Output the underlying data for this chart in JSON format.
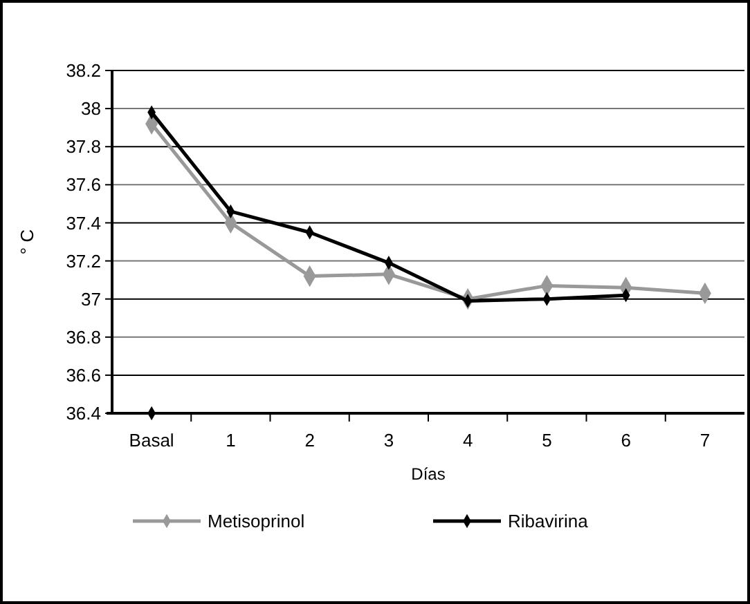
{
  "chart_data": {
    "type": "line",
    "xlabel": "Días",
    "ylabel": "° C",
    "categories": [
      "Basal",
      "1",
      "2",
      "3",
      "4",
      "5",
      "6",
      "7"
    ],
    "series": [
      {
        "name": "Metisoprinol",
        "color": "#999999",
        "values": [
          37.92,
          37.4,
          37.12,
          37.13,
          37.0,
          37.07,
          37.06,
          37.03
        ]
      },
      {
        "name": "Ribavirina",
        "color": "#000000",
        "values": [
          37.98,
          37.46,
          37.35,
          37.19,
          36.99,
          37.0,
          37.02,
          null
        ]
      },
      {
        "type": "scatter",
        "color": "#000000",
        "values": [
          36.4,
          null,
          null,
          null,
          null,
          null,
          null,
          null
        ]
      }
    ],
    "ylim": [
      36.4,
      38.2
    ],
    "yticks": [
      36.4,
      36.6,
      36.8,
      37,
      37.2,
      37.4,
      37.6,
      37.8,
      38,
      38.2
    ],
    "grid": "y",
    "legend": "bottom",
    "marker": "diamond",
    "line_style": "solid"
  }
}
